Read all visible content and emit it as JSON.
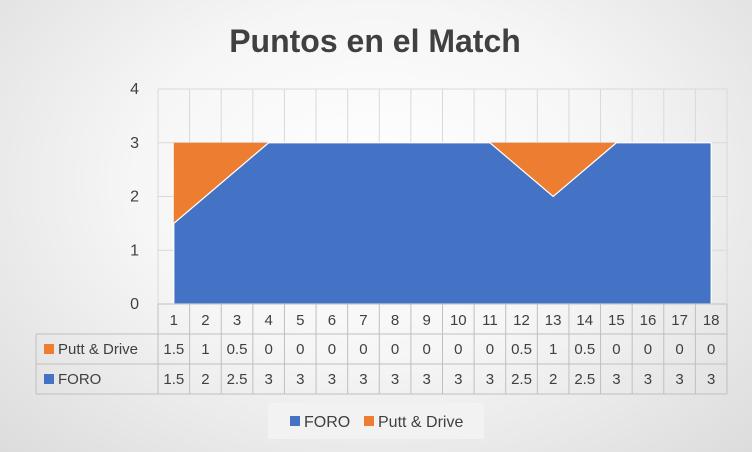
{
  "chart_data": {
    "type": "area",
    "stacked": true,
    "title": "Puntos en el Match",
    "categories": [
      "1",
      "2",
      "3",
      "4",
      "5",
      "6",
      "7",
      "8",
      "9",
      "10",
      "11",
      "12",
      "13",
      "14",
      "15",
      "16",
      "17",
      "18"
    ],
    "series": [
      {
        "name": "FORO",
        "color": "#4472C4",
        "values": [
          1.5,
          2,
          2.5,
          3,
          3,
          3,
          3,
          3,
          3,
          3,
          3,
          2.5,
          2,
          2.5,
          3,
          3,
          3,
          3
        ],
        "value_labels": [
          "1.5",
          "2",
          "2.5",
          "3",
          "3",
          "3",
          "3",
          "3",
          "3",
          "3",
          "3",
          "2.5",
          "2",
          "2.5",
          "3",
          "3",
          "3",
          "3"
        ]
      },
      {
        "name": "Putt & Drive",
        "color": "#ED7D31",
        "values": [
          1.5,
          1,
          0.5,
          0,
          0,
          0,
          0,
          0,
          0,
          0,
          0,
          0.5,
          1,
          0.5,
          0,
          0,
          0,
          0
        ],
        "value_labels": [
          "1.5",
          "1",
          "0.5",
          "0",
          "0",
          "0",
          "0",
          "0",
          "0",
          "0",
          "0",
          "0.5",
          "1",
          "0.5",
          "0",
          "0",
          "0",
          "0"
        ]
      }
    ],
    "ylim": [
      0,
      4
    ],
    "yticks": [
      "0",
      "1",
      "2",
      "3",
      "4"
    ],
    "grid": true,
    "data_table": true,
    "legend": "bottom",
    "legend_order": [
      "FORO",
      "Putt & Drive"
    ],
    "table_row_order": [
      "Putt & Drive",
      "FORO"
    ]
  }
}
